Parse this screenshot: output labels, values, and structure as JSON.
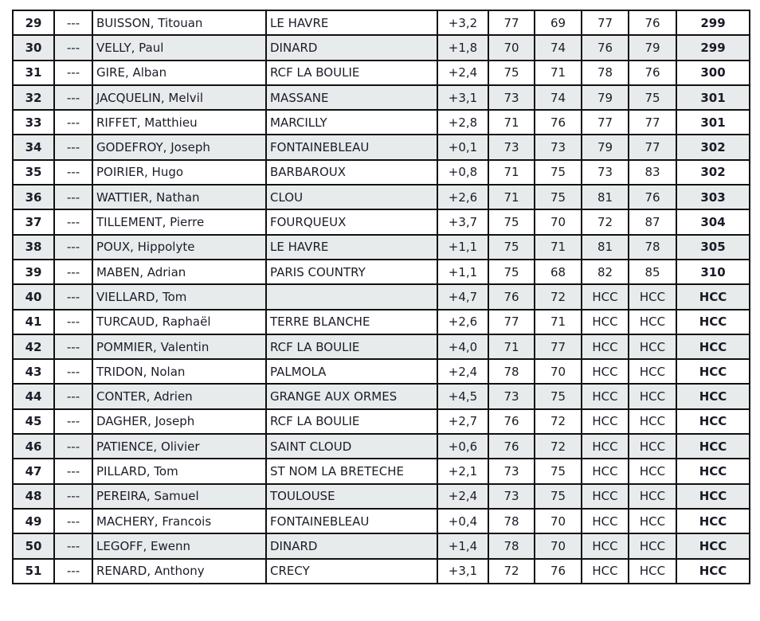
{
  "colors": {
    "row_alt": "#e8ebec",
    "border": "#111111"
  },
  "rows": [
    {
      "pos": "29",
      "mark": "---",
      "name": "BUISSON, Titouan",
      "club": "LE HAVRE",
      "index": "+3,2",
      "r1": "77",
      "r2": "69",
      "r3": "77",
      "r4": "76",
      "total": "299"
    },
    {
      "pos": "30",
      "mark": "---",
      "name": "VELLY, Paul",
      "club": "DINARD",
      "index": "+1,8",
      "r1": "70",
      "r2": "74",
      "r3": "76",
      "r4": "79",
      "total": "299"
    },
    {
      "pos": "31",
      "mark": "---",
      "name": "GIRE, Alban",
      "club": "RCF LA BOULIE",
      "index": "+2,4",
      "r1": "75",
      "r2": "71",
      "r3": "78",
      "r4": "76",
      "total": "300"
    },
    {
      "pos": "32",
      "mark": "---",
      "name": "JACQUELIN, Melvil",
      "club": "MASSANE",
      "index": "+3,1",
      "r1": "73",
      "r2": "74",
      "r3": "79",
      "r4": "75",
      "total": "301"
    },
    {
      "pos": "33",
      "mark": "---",
      "name": "RIFFET, Matthieu",
      "club": "MARCILLY",
      "index": "+2,8",
      "r1": "71",
      "r2": "76",
      "r3": "77",
      "r4": "77",
      "total": "301"
    },
    {
      "pos": "34",
      "mark": "---",
      "name": "GODEFROY, Joseph",
      "club": "FONTAINEBLEAU",
      "index": "+0,1",
      "r1": "73",
      "r2": "73",
      "r3": "79",
      "r4": "77",
      "total": "302"
    },
    {
      "pos": "35",
      "mark": "---",
      "name": "POIRIER, Hugo",
      "club": "BARBAROUX",
      "index": "+0,8",
      "r1": "71",
      "r2": "75",
      "r3": "73",
      "r4": "83",
      "total": "302"
    },
    {
      "pos": "36",
      "mark": "---",
      "name": "WATTIER, Nathan",
      "club": "CLOU",
      "index": "+2,6",
      "r1": "71",
      "r2": "75",
      "r3": "81",
      "r4": "76",
      "total": "303"
    },
    {
      "pos": "37",
      "mark": "---",
      "name": "TILLEMENT, Pierre",
      "club": "FOURQUEUX",
      "index": "+3,7",
      "r1": "75",
      "r2": "70",
      "r3": "72",
      "r4": "87",
      "total": "304"
    },
    {
      "pos": "38",
      "mark": "---",
      "name": "POUX, Hippolyte",
      "club": "LE HAVRE",
      "index": "+1,1",
      "r1": "75",
      "r2": "71",
      "r3": "81",
      "r4": "78",
      "total": "305"
    },
    {
      "pos": "39",
      "mark": "---",
      "name": "MABEN, Adrian",
      "club": "PARIS COUNTRY",
      "index": "+1,1",
      "r1": "75",
      "r2": "68",
      "r3": "82",
      "r4": "85",
      "total": "310"
    },
    {
      "pos": "40",
      "mark": "---",
      "name": "VIELLARD, Tom",
      "club": "",
      "index": "+4,7",
      "r1": "76",
      "r2": "72",
      "r3": "HCC",
      "r4": "HCC",
      "total": "HCC"
    },
    {
      "pos": "41",
      "mark": "---",
      "name": "TURCAUD, Raphaël",
      "club": "TERRE BLANCHE",
      "index": "+2,6",
      "r1": "77",
      "r2": "71",
      "r3": "HCC",
      "r4": "HCC",
      "total": "HCC"
    },
    {
      "pos": "42",
      "mark": "---",
      "name": "POMMIER, Valentin",
      "club": "RCF LA BOULIE",
      "index": "+4,0",
      "r1": "71",
      "r2": "77",
      "r3": "HCC",
      "r4": "HCC",
      "total": "HCC"
    },
    {
      "pos": "43",
      "mark": "---",
      "name": "TRIDON, Nolan",
      "club": "PALMOLA",
      "index": "+2,4",
      "r1": "78",
      "r2": "70",
      "r3": "HCC",
      "r4": "HCC",
      "total": "HCC"
    },
    {
      "pos": "44",
      "mark": "---",
      "name": "CONTER, Adrien",
      "club": "GRANGE AUX ORMES",
      "index": "+4,5",
      "r1": "73",
      "r2": "75",
      "r3": "HCC",
      "r4": "HCC",
      "total": "HCC"
    },
    {
      "pos": "45",
      "mark": "---",
      "name": "DAGHER, Joseph",
      "club": "RCF LA BOULIE",
      "index": "+2,7",
      "r1": "76",
      "r2": "72",
      "r3": "HCC",
      "r4": "HCC",
      "total": "HCC"
    },
    {
      "pos": "46",
      "mark": "---",
      "name": "PATIENCE, Olivier",
      "club": "SAINT CLOUD",
      "index": "+0,6",
      "r1": "76",
      "r2": "72",
      "r3": "HCC",
      "r4": "HCC",
      "total": "HCC"
    },
    {
      "pos": "47",
      "mark": "---",
      "name": "PILLARD, Tom",
      "club": "ST NOM LA BRETECHE",
      "index": "+2,1",
      "r1": "73",
      "r2": "75",
      "r3": "HCC",
      "r4": "HCC",
      "total": "HCC"
    },
    {
      "pos": "48",
      "mark": "---",
      "name": "PEREIRA, Samuel",
      "club": "TOULOUSE",
      "index": "+2,4",
      "r1": "73",
      "r2": "75",
      "r3": "HCC",
      "r4": "HCC",
      "total": "HCC"
    },
    {
      "pos": "49",
      "mark": "---",
      "name": "MACHERY, Francois",
      "club": "FONTAINEBLEAU",
      "index": "+0,4",
      "r1": "78",
      "r2": "70",
      "r3": "HCC",
      "r4": "HCC",
      "total": "HCC"
    },
    {
      "pos": "50",
      "mark": "---",
      "name": "LEGOFF, Ewenn",
      "club": "DINARD",
      "index": "+1,4",
      "r1": "78",
      "r2": "70",
      "r3": "HCC",
      "r4": "HCC",
      "total": "HCC"
    },
    {
      "pos": "51",
      "mark": "---",
      "name": "RENARD, Anthony",
      "club": "CRECY",
      "index": "+3,1",
      "r1": "72",
      "r2": "76",
      "r3": "HCC",
      "r4": "HCC",
      "total": "HCC"
    }
  ]
}
